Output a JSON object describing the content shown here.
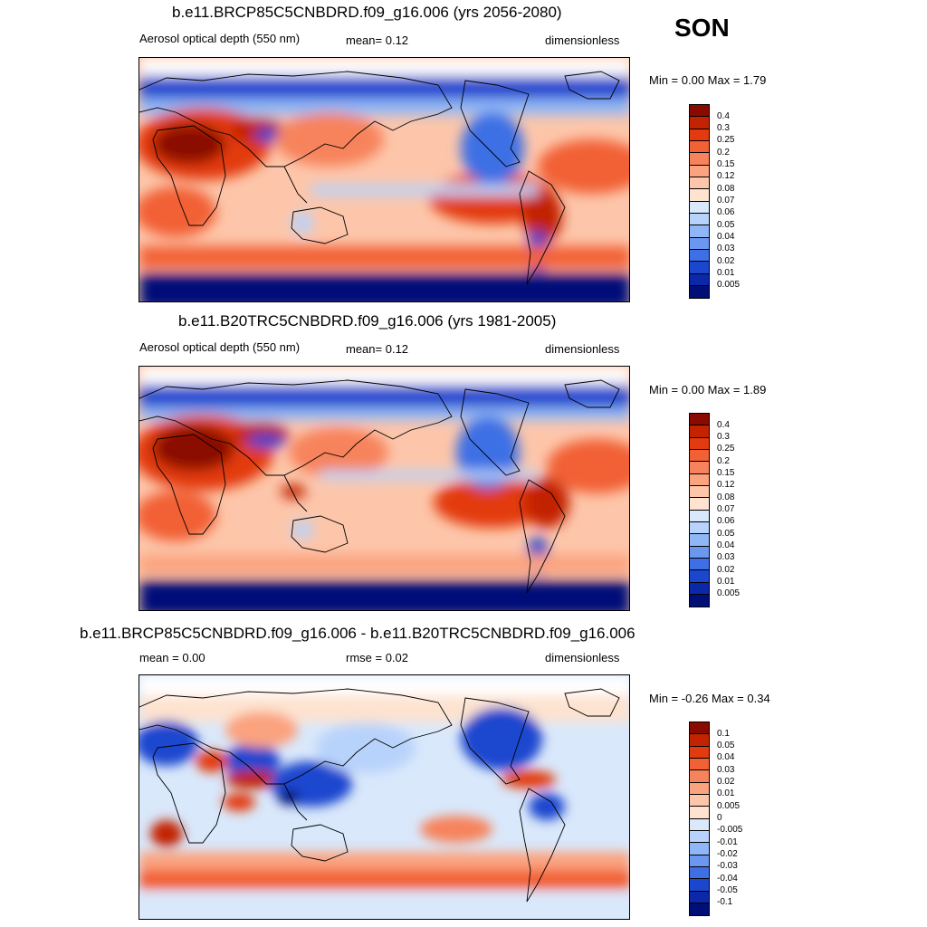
{
  "season": "SON",
  "panels": [
    {
      "id": "future",
      "title": "b.e11.BRCP85C5CNBDRD.f09_g16.006 (yrs 2056-2080)",
      "left_label": "Aerosol optical depth (550 nm)",
      "center_label": "mean=   0.12",
      "right_label": "dimensionless",
      "minmax": "Min =    0.00 Max =    1.79",
      "colorbar": {
        "levels": [
          "0.4",
          "0.3",
          "0.25",
          "0.2",
          "0.15",
          "0.12",
          "0.08",
          "0.07",
          "0.06",
          "0.05",
          "0.04",
          "0.03",
          "0.02",
          "0.01",
          "0.005"
        ],
        "colors": [
          "#8a0a00",
          "#c32300",
          "#e33a0f",
          "#f26035",
          "#f7835c",
          "#fba27e",
          "#fdc6aa",
          "#fde3d0",
          "#d9e8fb",
          "#b8d3fb",
          "#8fb7f7",
          "#6b97f1",
          "#3e6fe5",
          "#1b47cf",
          "#0a28a8",
          "#000f78"
        ]
      }
    },
    {
      "id": "historical",
      "title": "b.e11.B20TRC5CNBDRD.f09_g16.006 (yrs 1981-2005)",
      "left_label": "Aerosol optical depth (550 nm)",
      "center_label": "mean=   0.12",
      "right_label": "dimensionless",
      "minmax": "Min =    0.00 Max =    1.89",
      "colorbar": {
        "levels": [
          "0.4",
          "0.3",
          "0.25",
          "0.2",
          "0.15",
          "0.12",
          "0.08",
          "0.07",
          "0.06",
          "0.05",
          "0.04",
          "0.03",
          "0.02",
          "0.01",
          "0.005"
        ],
        "colors": [
          "#8a0a00",
          "#c32300",
          "#e33a0f",
          "#f26035",
          "#f7835c",
          "#fba27e",
          "#fdc6aa",
          "#fde3d0",
          "#d9e8fb",
          "#b8d3fb",
          "#8fb7f7",
          "#6b97f1",
          "#3e6fe5",
          "#1b47cf",
          "#0a28a8",
          "#000f78"
        ]
      }
    },
    {
      "id": "difference",
      "title": "b.e11.BRCP85C5CNBDRD.f09_g16.006 - b.e11.B20TRC5CNBDRD.f09_g16.006",
      "left_label": "mean =    0.00",
      "center_label": "rmse =   0.02",
      "right_label": "dimensionless",
      "minmax": "Min =  -0.26 Max =    0.34",
      "colorbar": {
        "levels": [
          "0.1",
          "0.05",
          "0.04",
          "0.03",
          "0.02",
          "0.01",
          "0.005",
          "0",
          "-0.005",
          "-0.01",
          "-0.02",
          "-0.03",
          "-0.04",
          "-0.05",
          "-0.1"
        ],
        "colors": [
          "#8a0a00",
          "#c32300",
          "#e33a0f",
          "#f26035",
          "#f7835c",
          "#fba27e",
          "#fdc6aa",
          "#fde3d0",
          "#d9e8fb",
          "#b8d3fb",
          "#8fb7f7",
          "#6b97f1",
          "#3e6fe5",
          "#1b47cf",
          "#0a28a8",
          "#000f78"
        ]
      }
    }
  ]
}
